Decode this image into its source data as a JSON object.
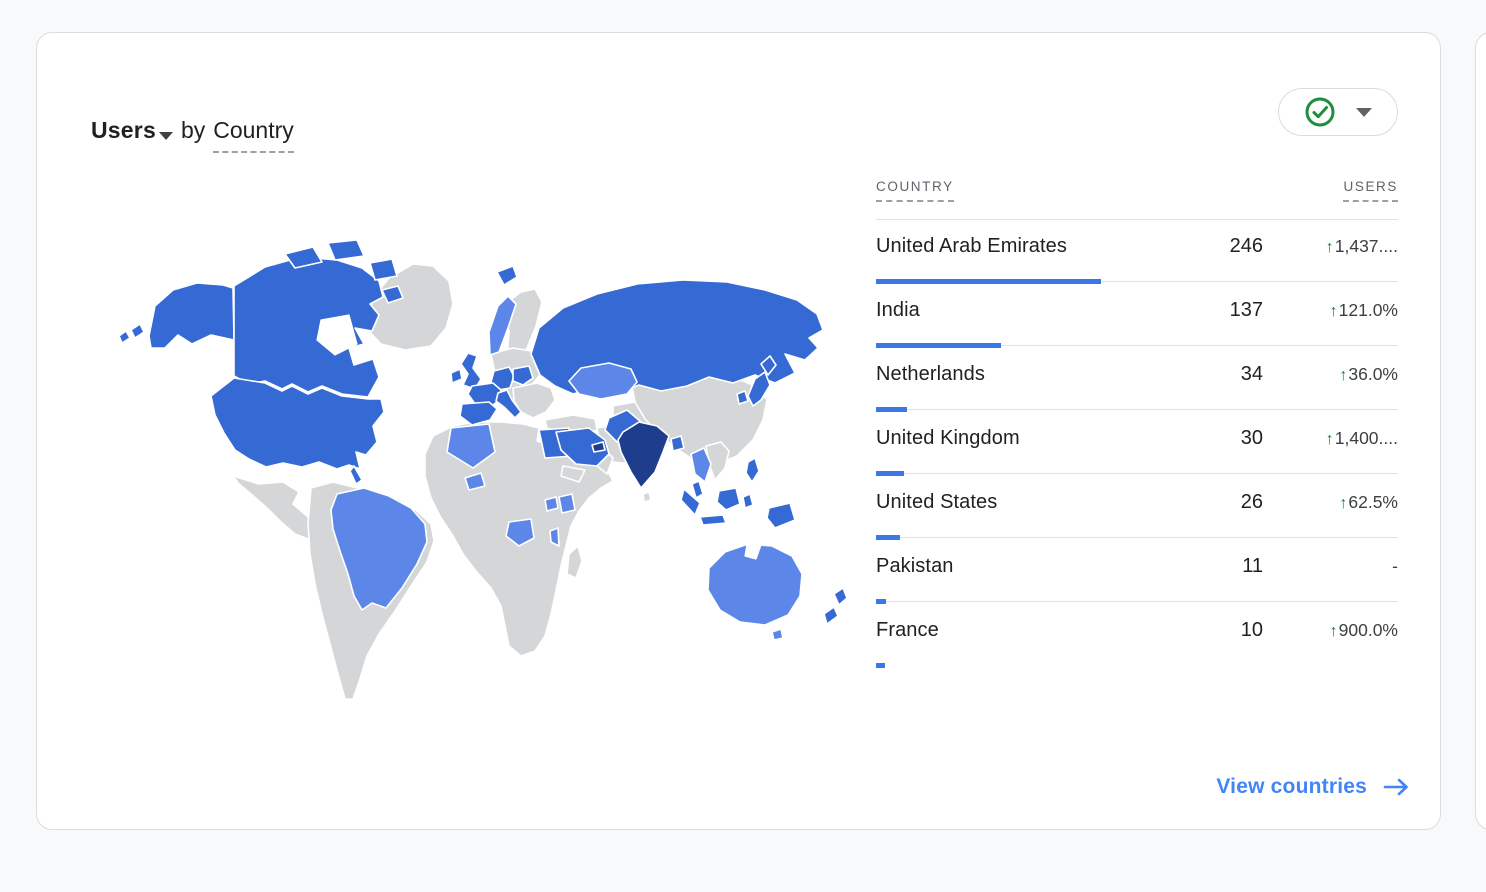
{
  "card": {
    "title": {
      "metric": "Users",
      "connector": "by",
      "dimension": "Country"
    },
    "toolbar": {
      "status_icon": "check-circle-icon",
      "dropdown_icon": "caret-down-icon"
    },
    "table": {
      "headers": {
        "country": "COUNTRY",
        "users": "USERS"
      },
      "rows": [
        {
          "country": "United Arab Emirates",
          "users": "246",
          "arrow": "↑",
          "change": "1,437....",
          "bar_pct": 43.1
        },
        {
          "country": "India",
          "users": "137",
          "arrow": "↑",
          "change": "121.0%",
          "bar_pct": 24.0
        },
        {
          "country": "Netherlands",
          "users": "34",
          "arrow": "↑",
          "change": "36.0%",
          "bar_pct": 6.0
        },
        {
          "country": "United Kingdom",
          "users": "30",
          "arrow": "↑",
          "change": "1,400....",
          "bar_pct": 5.3
        },
        {
          "country": "United States",
          "users": "26",
          "arrow": "↑",
          "change": "62.5%",
          "bar_pct": 4.6
        },
        {
          "country": "Pakistan",
          "users": "11",
          "arrow": "",
          "change": "-",
          "bar_pct": 1.9
        },
        {
          "country": "France",
          "users": "10",
          "arrow": "↑",
          "change": "900.0%",
          "bar_pct": 1.7
        }
      ]
    },
    "footer": {
      "link_label": "View countries",
      "arrow": "→"
    },
    "colors": {
      "bar_blue": "#3b77e8",
      "link_blue": "#4285f4",
      "positive_green": "#188038",
      "check_green": "#1e8e3e",
      "map_dark": "#1e3d8d",
      "map_mid": "#3569d3",
      "map_light": "#5c87e8",
      "map_no_data": "#d5d6d8",
      "header_gray": "#5f6368",
      "divider_gray": "#e1e3e6",
      "card_border": "#dadce0",
      "page_background": "#f8f9fa"
    }
  },
  "chart_data": {
    "type": "heatmap",
    "subtype": "choropleth-world-map",
    "title": "Users by Country",
    "categories": [
      "United Arab Emirates",
      "India",
      "Netherlands",
      "United Kingdom",
      "United States",
      "Pakistan",
      "France"
    ],
    "values": [
      246,
      137,
      34,
      30,
      26,
      11,
      10
    ],
    "changes": [
      "1,437....",
      "121.0%",
      "36.0%",
      "1,400....",
      "62.5%",
      "-",
      "900.0%"
    ],
    "legend_position": "none",
    "map_shading": {
      "dark": [
        "India",
        "United Arab Emirates"
      ],
      "medium": [
        "United States",
        "Canada",
        "Russia",
        "United Kingdom",
        "France",
        "Spain",
        "Germany",
        "Netherlands",
        "Poland",
        "Italy",
        "Egypt",
        "Saudi Arabia",
        "Pakistan",
        "Japan",
        "Indonesia",
        "Philippines",
        "New Zealand",
        "Iceland"
      ],
      "light": [
        "Brazil",
        "Australia",
        "Kazakhstan",
        "Algeria",
        "Norway",
        "Angola",
        "Kenya",
        "Uganda",
        "Burkina Faso",
        "Thailand",
        "Mozambique"
      ]
    }
  }
}
